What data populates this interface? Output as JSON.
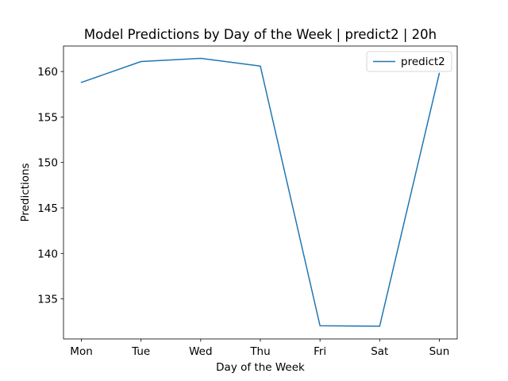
{
  "chart_data": {
    "type": "line",
    "title": "Model Predictions by Day of the Week | predict2 | 20h",
    "xlabel": "Day of the Week",
    "ylabel": "Predictions",
    "categories": [
      "Mon",
      "Tue",
      "Wed",
      "Thu",
      "Fri",
      "Sat",
      "Sun"
    ],
    "series": [
      {
        "name": "predict2",
        "values": [
          158.8,
          161.1,
          161.45,
          160.6,
          132.05,
          132.0,
          159.8
        ],
        "color": "#1f77b4"
      }
    ],
    "ylim": [
      130.6,
      162.8
    ],
    "yticks": [
      135,
      140,
      145,
      150,
      155,
      160
    ],
    "grid": false,
    "legend_position": "top-right"
  }
}
